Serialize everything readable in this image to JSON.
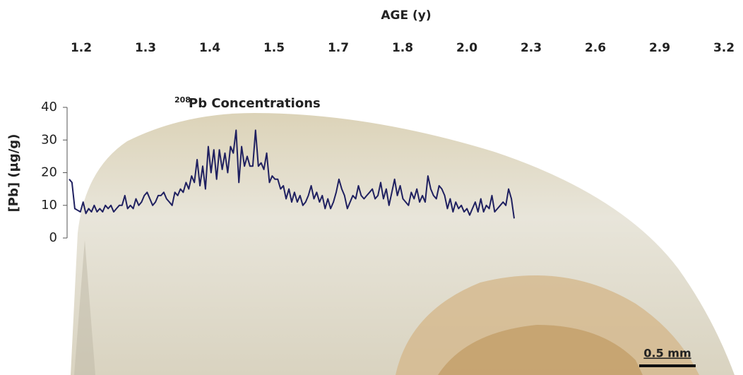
{
  "chart_data": {
    "type": "line",
    "title_superscript": "208",
    "title": "Pb Concentrations",
    "y_label": "[Pb] (µg/g)",
    "top_axis": {
      "label": "AGE (y)",
      "categories": [
        "1.2",
        "1.3",
        "1.4",
        "1.5",
        "1.7",
        "1.8",
        "2.0",
        "2.3",
        "2.6",
        "2.9",
        "3.2"
      ]
    },
    "ylim": [
      0,
      40
    ],
    "yticks": [
      0,
      10,
      20,
      30,
      40
    ],
    "color": "#1f2060",
    "values": [
      18,
      17,
      9,
      8.5,
      8,
      11,
      7.5,
      9,
      8,
      10,
      8,
      9,
      8,
      10,
      9,
      10,
      8,
      9,
      10,
      10,
      13,
      9,
      10,
      9,
      12,
      10,
      11,
      13,
      14,
      12,
      10,
      11,
      13,
      13,
      14,
      12,
      11,
      10,
      14,
      13,
      15,
      14,
      17,
      15,
      19,
      17,
      24,
      16,
      22,
      15,
      28,
      20,
      27,
      18,
      27,
      21,
      26,
      20,
      28,
      26,
      33,
      17,
      28,
      22,
      25,
      22,
      22,
      33,
      22,
      23,
      21,
      26,
      17,
      19,
      18,
      18,
      15,
      16,
      12,
      15,
      11,
      14,
      11,
      13,
      10,
      11,
      13,
      16,
      12,
      14,
      11,
      13,
      9,
      12,
      9,
      11,
      14,
      18,
      15,
      13,
      9,
      11,
      13,
      12,
      16,
      13,
      12,
      13,
      14,
      15,
      12,
      13,
      17,
      12,
      15,
      10,
      14,
      18,
      13,
      16,
      12,
      11,
      10,
      14,
      12,
      15,
      11,
      13,
      11,
      19,
      15,
      13,
      12,
      16,
      15,
      13,
      9,
      12,
      8,
      11,
      9,
      10,
      8,
      9,
      7,
      9,
      11,
      8,
      12,
      8,
      10,
      9,
      13,
      8,
      9,
      10,
      11,
      10,
      15,
      12,
      6
    ],
    "scale_bar": "0.5 mm"
  }
}
